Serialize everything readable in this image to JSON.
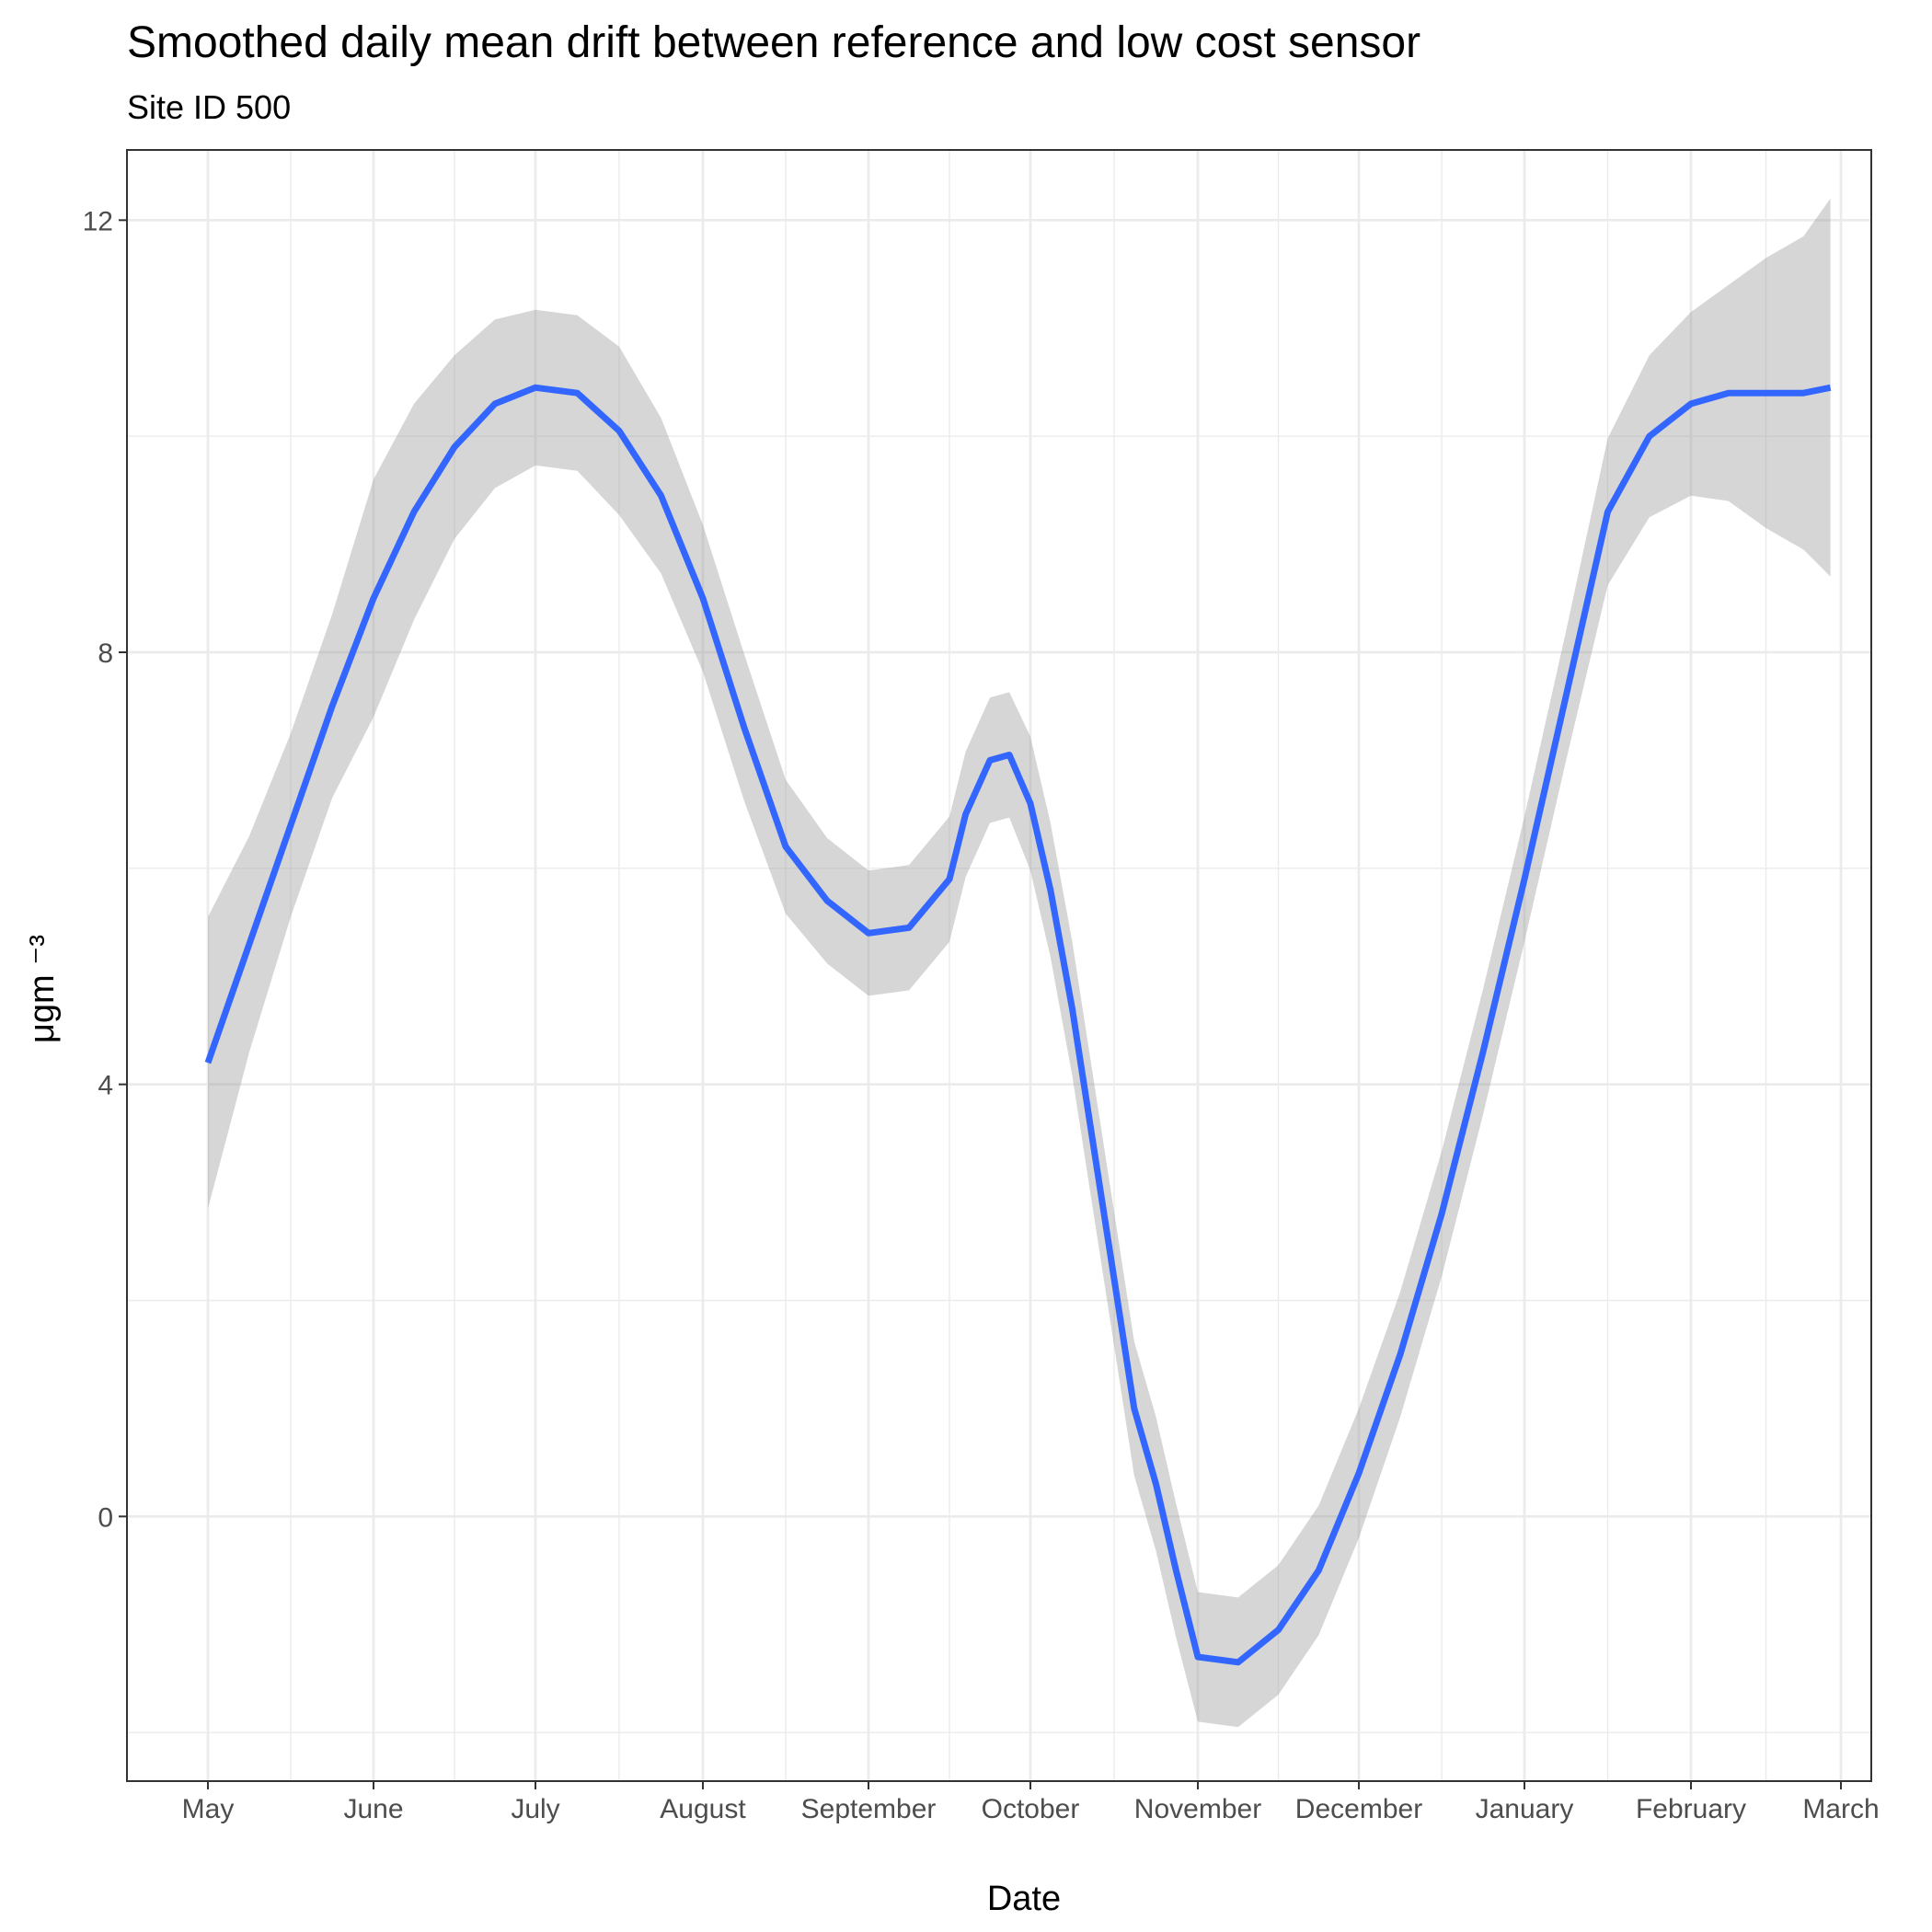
{
  "chart_data": {
    "type": "line",
    "title": "Smoothed daily mean drift between reference and low cost sensor",
    "subtitle": "Site ID 500",
    "xlabel": "Date",
    "ylabel": "μgm ⁻³",
    "x_ticks": [
      {
        "month_index": 0,
        "label": "May"
      },
      {
        "month_index": 1,
        "label": "June"
      },
      {
        "month_index": 2,
        "label": "July"
      },
      {
        "month_index": 3,
        "label": "August"
      },
      {
        "month_index": 4,
        "label": "September"
      },
      {
        "month_index": 5,
        "label": "October"
      },
      {
        "month_index": 6,
        "label": "November"
      },
      {
        "month_index": 7,
        "label": "December"
      },
      {
        "month_index": 8,
        "label": "January"
      },
      {
        "month_index": 9,
        "label": "February"
      },
      {
        "month_index": 10,
        "label": "March"
      }
    ],
    "y_ticks": [
      0,
      4,
      8,
      12
    ],
    "xlim": [
      -0.5,
      10.5
    ],
    "ylim": [
      -2.45,
      12.65
    ],
    "grid": true,
    "colors": {
      "line": "#3366ff",
      "ribbon": "#999999",
      "panel_border": "#333333",
      "grid": "#ebebeb"
    },
    "series": [
      {
        "x": [
          0,
          0.25,
          0.5,
          0.75,
          1,
          1.25,
          1.5,
          1.75,
          2,
          2.25,
          2.5,
          2.75,
          3,
          3.25,
          3.5,
          3.75,
          4,
          4.25,
          4.5,
          4.6,
          4.75,
          4.87,
          5,
          5.12,
          5.25,
          5.37,
          5.5,
          5.62,
          5.75,
          5.87,
          6,
          6.25,
          6.5,
          6.75,
          7,
          7.25,
          7.5,
          7.75,
          8,
          8.25,
          8.5,
          8.75,
          9,
          9.25,
          9.5,
          9.75,
          9.93
        ],
        "y": [
          4.2,
          5.3,
          6.4,
          7.5,
          8.5,
          9.3,
          9.9,
          10.3,
          10.45,
          10.4,
          10.05,
          9.45,
          8.5,
          7.3,
          6.2,
          5.7,
          5.4,
          5.45,
          5.9,
          6.5,
          7.0,
          7.05,
          6.6,
          5.8,
          4.7,
          3.5,
          2.2,
          1.0,
          0.3,
          -0.5,
          -1.3,
          -1.35,
          -1.05,
          -0.5,
          0.4,
          1.5,
          2.8,
          4.3,
          5.9,
          7.6,
          9.3,
          10.0,
          10.3,
          10.4,
          10.4,
          10.4,
          10.45
        ],
        "ribbon_upper": [],
        "ribbon_lower": []
      }
    ]
  }
}
